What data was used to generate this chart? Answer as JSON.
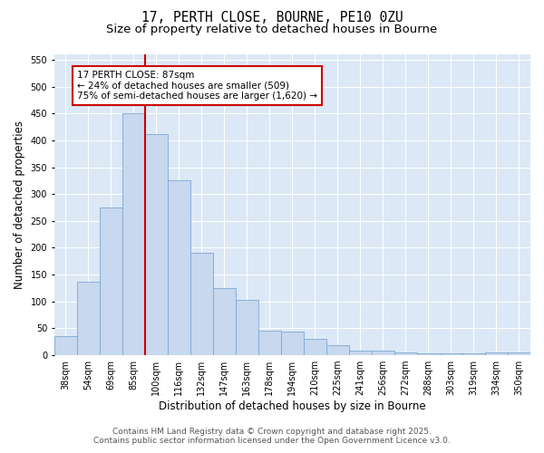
{
  "title_line1": "17, PERTH CLOSE, BOURNE, PE10 0ZU",
  "title_line2": "Size of property relative to detached houses in Bourne",
  "xlabel": "Distribution of detached houses by size in Bourne",
  "ylabel": "Number of detached properties",
  "categories": [
    "38sqm",
    "54sqm",
    "69sqm",
    "85sqm",
    "100sqm",
    "116sqm",
    "132sqm",
    "147sqm",
    "163sqm",
    "178sqm",
    "194sqm",
    "210sqm",
    "225sqm",
    "241sqm",
    "256sqm",
    "272sqm",
    "288sqm",
    "303sqm",
    "319sqm",
    "334sqm",
    "350sqm"
  ],
  "values": [
    35,
    137,
    275,
    450,
    412,
    325,
    190,
    125,
    103,
    46,
    44,
    30,
    19,
    8,
    9,
    5,
    4,
    3,
    4,
    5,
    6
  ],
  "bar_color": "#c8d8ee",
  "bar_edge_color": "#7ba8d4",
  "red_line_x": 3.5,
  "red_line_color": "#cc0000",
  "annotation_box_text": "17 PERTH CLOSE: 87sqm\n← 24% of detached houses are smaller (509)\n75% of semi-detached houses are larger (1,620) →",
  "annotation_box_color": "#cc0000",
  "ylim": [
    0,
    560
  ],
  "yticks": [
    0,
    50,
    100,
    150,
    200,
    250,
    300,
    350,
    400,
    450,
    500,
    550
  ],
  "background_color": "#dce8f5",
  "grid_color": "#ffffff",
  "footer_line1": "Contains HM Land Registry data © Crown copyright and database right 2025.",
  "footer_line2": "Contains public sector information licensed under the Open Government Licence v3.0.",
  "title_fontsize": 10.5,
  "subtitle_fontsize": 9.5,
  "tick_fontsize": 7,
  "label_fontsize": 8.5,
  "footer_fontsize": 6.5
}
